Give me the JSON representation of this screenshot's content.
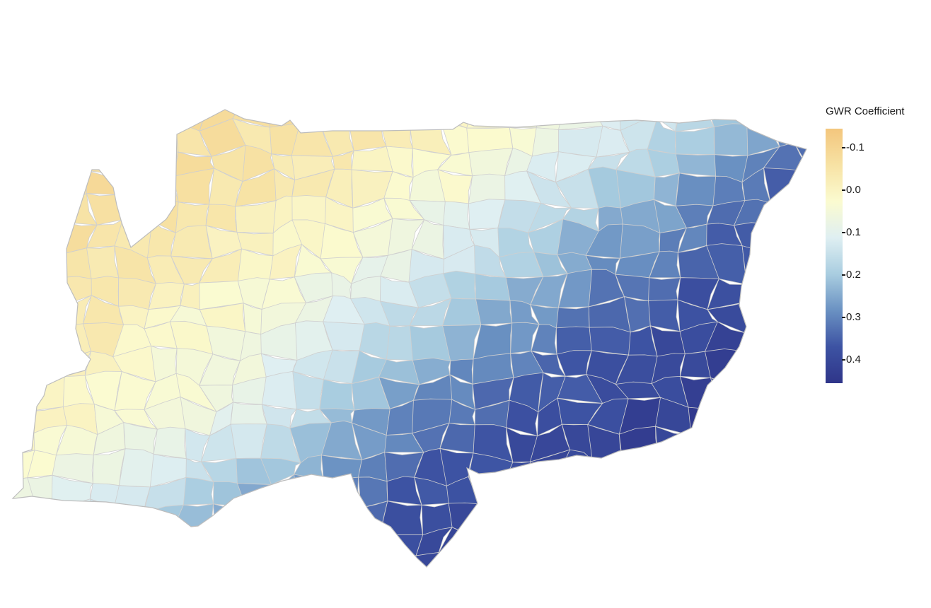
{
  "legend": {
    "title": "GWR Coefficient",
    "ticks": [
      {
        "value": -0.1,
        "label": "-0.1"
      },
      {
        "value": 0.0,
        "label": "0.0"
      },
      {
        "value": 0.1,
        "label": "0.1"
      },
      {
        "value": 0.2,
        "label": "0.2"
      },
      {
        "value": 0.3,
        "label": "0.3"
      },
      {
        "value": 0.4,
        "label": "0.4"
      }
    ],
    "range": [
      -0.145,
      0.455
    ],
    "colors": [
      "#f3c67d",
      "#f7e2a4",
      "#fbfbd0",
      "#dfeff2",
      "#a9cde0",
      "#6a91c2",
      "#3d53a3",
      "#2f3589"
    ]
  },
  "map": {
    "fill_scale": "diverging orange-yellow-blue",
    "outline_color": "#cfcfcf"
  }
}
